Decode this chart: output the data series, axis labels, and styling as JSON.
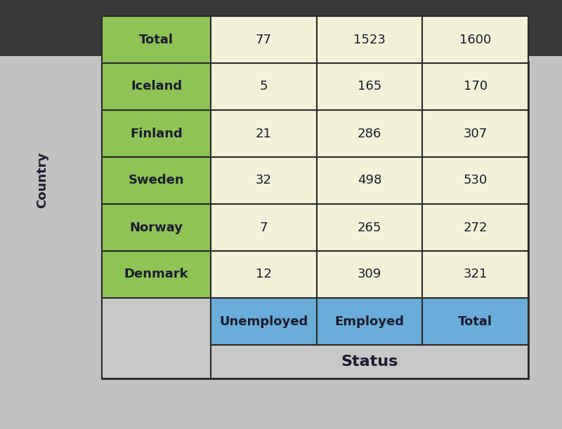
{
  "title": "Status",
  "row_header_label": "Country",
  "col_headers": [
    "Unemployed",
    "Employed",
    "Total"
  ],
  "row_headers": [
    "Denmark",
    "Norway",
    "Sweden",
    "Finland",
    "Iceland",
    "Total"
  ],
  "data": [
    [
      12,
      309,
      321
    ],
    [
      7,
      265,
      272
    ],
    [
      32,
      498,
      530
    ],
    [
      21,
      286,
      307
    ],
    [
      5,
      165,
      170
    ],
    [
      77,
      1523,
      1600
    ]
  ],
  "col_header_bg": "#6aadda",
  "row_header_bg": "#8ec456",
  "data_cell_bg": "#f2f2d8",
  "text_dark": "#1c1c2e",
  "border_color": "#2a2a2a",
  "outer_bg": "#c8c8c8",
  "fig_bg_top": "#c0c0c0",
  "fig_bg_bot": "#404040",
  "title_fontsize": 16,
  "header_fontsize": 13,
  "data_fontsize": 13,
  "row_label_fontsize": 13,
  "side_label_fontsize": 13
}
